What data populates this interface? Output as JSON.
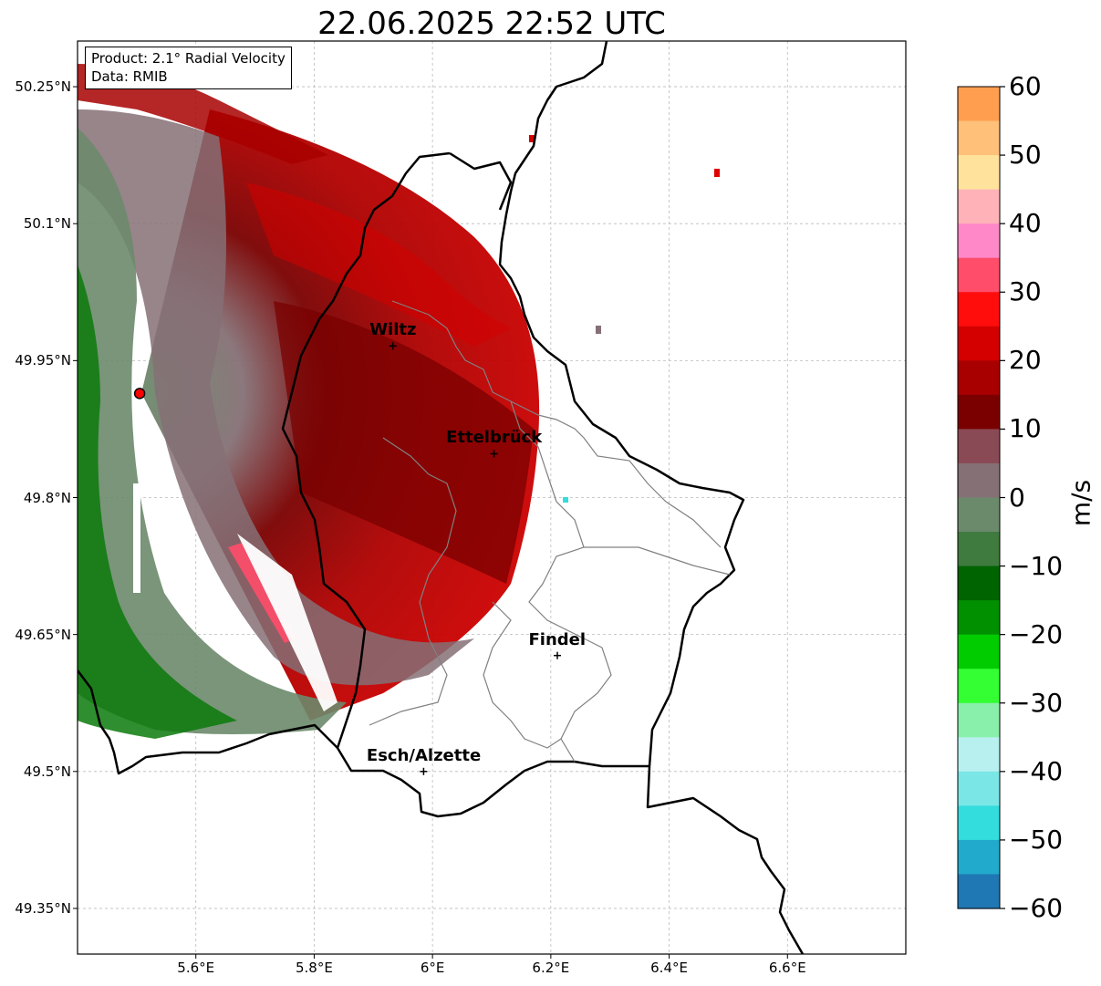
{
  "title": "22.06.2025 22:52 UTC",
  "info_box": {
    "product": "Product: 2.1° Radial Velocity",
    "data": "Data: RMIB"
  },
  "map": {
    "lat_range": [
      49.3,
      50.3
    ],
    "lon_range": [
      5.4,
      6.8
    ],
    "lat_ticks": [
      "50.25°N",
      "50.1°N",
      "49.95°N",
      "49.8°N",
      "49.65°N",
      "49.5°N",
      "49.35°N"
    ],
    "lon_ticks": [
      "5.6°E",
      "5.8°E",
      "6°E",
      "6.2°E",
      "6.4°E",
      "6.6°E"
    ],
    "radar_site": {
      "lat": 49.914,
      "lon": 5.505
    },
    "cities": [
      {
        "name": "Wiltz",
        "lat": 49.966,
        "lon": 5.933
      },
      {
        "name": "Ettelbrück",
        "lat": 49.848,
        "lon": 6.104
      },
      {
        "name": "Findel",
        "lat": 49.627,
        "lon": 6.211
      },
      {
        "name": "Esch/Alzette",
        "lat": 49.5,
        "lon": 5.985
      }
    ]
  },
  "colorbar": {
    "unit": "m/s",
    "range": [
      -60,
      60
    ],
    "ticks": [
      "60",
      "50",
      "40",
      "30",
      "20",
      "10",
      "0",
      "−10",
      "−20",
      "−30",
      "−40",
      "−50",
      "−60"
    ],
    "colors": [
      "#ff9e4f",
      "#ffc07a",
      "#ffe39c",
      "#ffb3b8",
      "#ff88c8",
      "#ff4d6a",
      "#ff0d0d",
      "#d40000",
      "#a80000",
      "#7a0000",
      "#8a4a55",
      "#857075",
      "#6b8a6b",
      "#3f7a3f",
      "#006400",
      "#009000",
      "#00cc00",
      "#33ff33",
      "#88f0aa",
      "#b8f0f0",
      "#7ae6e6",
      "#33dddd",
      "#22aacc",
      "#1f77b4"
    ]
  }
}
